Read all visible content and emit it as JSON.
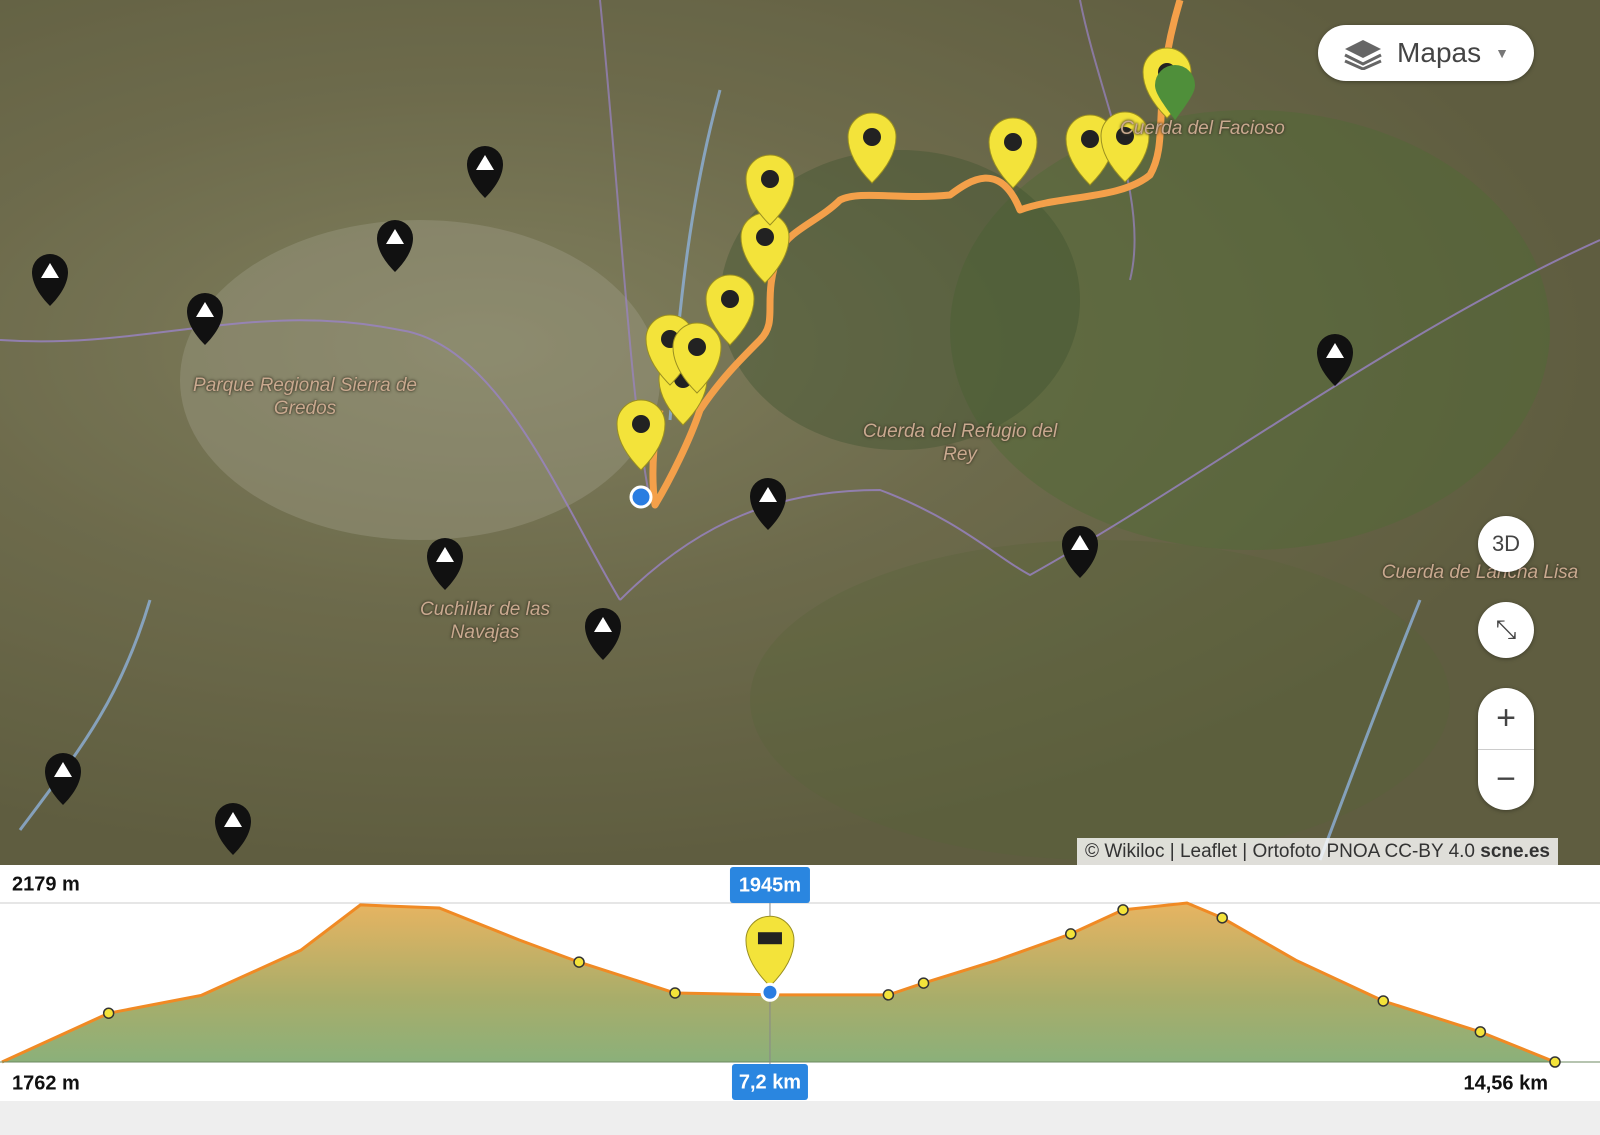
{
  "map": {
    "layers_button": "Mapas",
    "places": [
      "Cuerda del Facioso",
      "Parque Regional Sierra de Gredos",
      "Cuerda del Refugio del Rey",
      "Cuchillar de las Navajas",
      "Cuerda de Lancha Lisa"
    ],
    "controls": {
      "three_d": "3D",
      "zoom_in": "+",
      "zoom_out": "−"
    },
    "attribution": "© Wikiloc | Leaflet | Ortofoto PNOA CC-BY 4.0",
    "attribution_source": "scne.es"
  },
  "elevation_profile": {
    "y_top": {
      "value": 2179,
      "label": "2179 m"
    },
    "y_bottom": {
      "value": 1762,
      "label": "1762 m"
    },
    "x_end": {
      "value": 14.56,
      "label": "14,56 km"
    },
    "cursor": {
      "distance": {
        "value": 7.2,
        "label": "7,2 km"
      },
      "elevation": {
        "value": 1945,
        "label": "1945m"
      }
    },
    "distance_km": [
      0,
      1.0,
      1.87,
      2.8,
      3.36,
      4.1,
      4.85,
      5.41,
      6.31,
      7.24,
      8.31,
      8.64,
      9.33,
      10.02,
      10.51,
      11.11,
      11.44,
      12.13,
      12.95,
      13.86,
      14.56
    ],
    "elevation_m": [
      1762,
      1890,
      1937,
      2055,
      2174,
      2166,
      2082,
      2024,
      1943,
      1938,
      1938,
      1969,
      2029,
      2098,
      2161,
      2179,
      2140,
      2029,
      1922,
      1841,
      1762
    ]
  }
}
